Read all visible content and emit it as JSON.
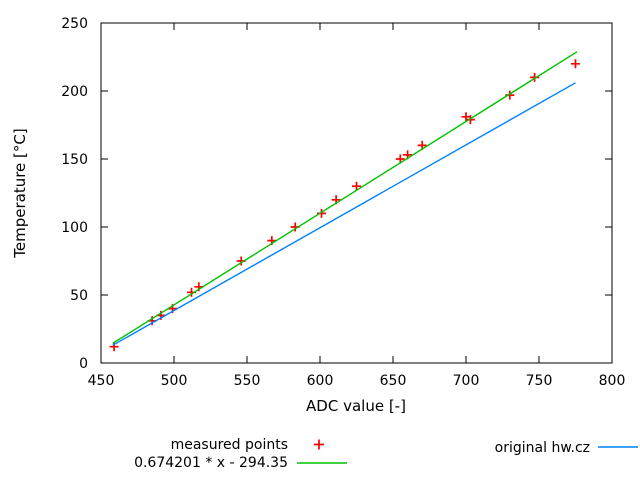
{
  "chart_data": {
    "type": "scatter",
    "title": "",
    "xlabel": "ADC value [-]",
    "ylabel": "Temperature [°C]",
    "xlim": [
      450,
      800
    ],
    "ylim": [
      0,
      250
    ],
    "xticks": [
      450,
      500,
      550,
      600,
      650,
      700,
      750,
      800
    ],
    "yticks": [
      0,
      50,
      100,
      150,
      200,
      250
    ],
    "grid": false,
    "legend_position": "below-plot, two columns",
    "border_color": "#000000",
    "series": [
      {
        "name": "measured points",
        "kind": "scatter",
        "marker": "plus",
        "color": "#ff0000",
        "points": [
          [
            459,
            12
          ],
          [
            485,
            31
          ],
          [
            491,
            35
          ],
          [
            499,
            40
          ],
          [
            512,
            52
          ],
          [
            517,
            56
          ],
          [
            546,
            75
          ],
          [
            567,
            90
          ],
          [
            583,
            100
          ],
          [
            601,
            110
          ],
          [
            611,
            120
          ],
          [
            625,
            130
          ],
          [
            655,
            150
          ],
          [
            660,
            153
          ],
          [
            670,
            160
          ],
          [
            700,
            181
          ],
          [
            703,
            179
          ],
          [
            730,
            197
          ],
          [
            747,
            210
          ],
          [
            775,
            220
          ]
        ]
      },
      {
        "name": "0.674201 * x - 294.35",
        "kind": "line",
        "color": "#00c000",
        "slope": 0.674201,
        "intercept": -294.35,
        "x_range": [
          458,
          776
        ]
      },
      {
        "name": "original hw.cz",
        "kind": "line",
        "color": "#0080ff",
        "points": [
          [
            458,
            13
          ],
          [
            775,
            206
          ]
        ]
      }
    ]
  }
}
